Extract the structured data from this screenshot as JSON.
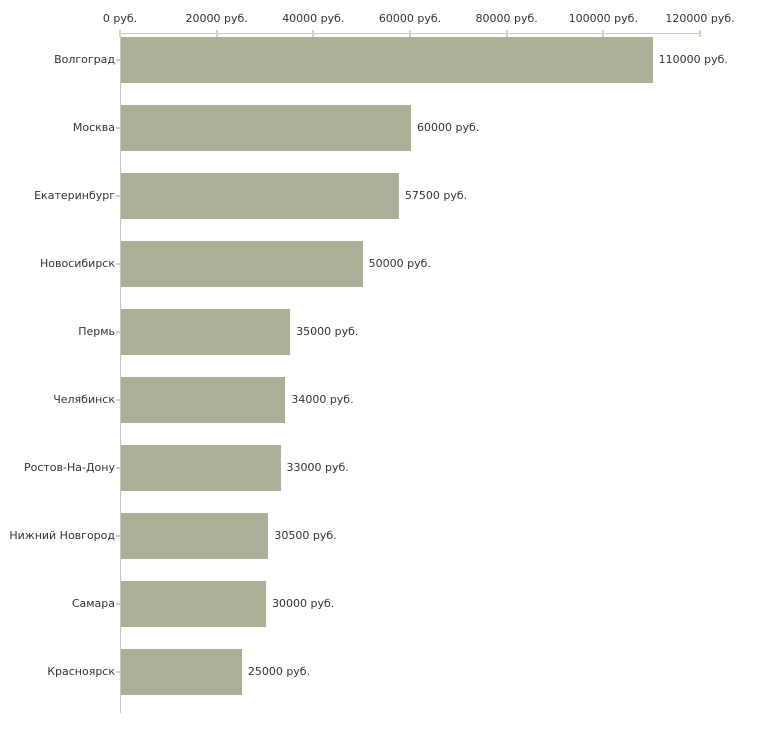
{
  "chart_data": {
    "type": "bar",
    "orientation": "horizontal",
    "title": "",
    "xlabel": "",
    "ylabel": "",
    "unit": "руб.",
    "grid": false,
    "legend": false,
    "xlim": [
      0,
      120000
    ],
    "x_tick_step": 20000,
    "categories": [
      "Волгоград",
      "Москва",
      "Екатеринбург",
      "Новосибирск",
      "Пермь",
      "Челябинск",
      "Ростов-На-Дону",
      "Нижний Новгород",
      "Самара",
      "Красноярск"
    ],
    "values": [
      110000,
      60000,
      57500,
      50000,
      35000,
      34000,
      33000,
      30500,
      30000,
      25000
    ],
    "value_labels": [
      "110000 руб.",
      "60000 руб.",
      "57500 руб.",
      "50000 руб.",
      "35000 руб.",
      "34000 руб.",
      "33000 руб.",
      "30500 руб.",
      "30000 руб.",
      "25000 руб."
    ],
    "x_tick_labels": [
      "0 руб.",
      "20000 руб.",
      "40000 руб.",
      "60000 руб.",
      "80000 руб.",
      "100000 руб.",
      "120000 руб."
    ],
    "colors": {
      "bar_fill": "#abb098",
      "axis_line": "#c8c8c8",
      "tick_mark": "#d6d3b0",
      "text": "#333333",
      "background": "#ffffff"
    }
  }
}
